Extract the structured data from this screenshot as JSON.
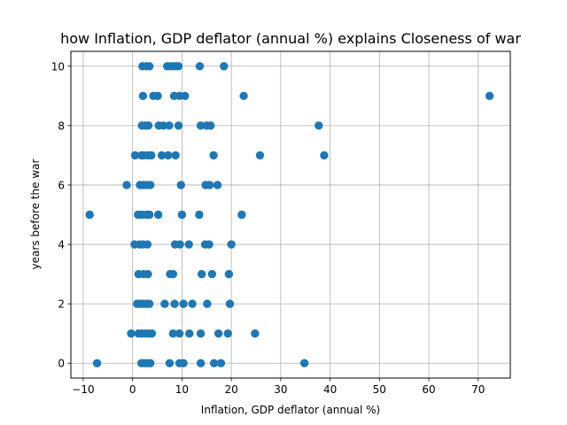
{
  "chart_data": {
    "type": "scatter",
    "title": "how Inflation, GDP deflator (annual %) explains Closeness of war",
    "xlabel": "Inflation, GDP deflator (annual %)",
    "ylabel": "years before the war",
    "xlim": [
      -12.5,
      76.5
    ],
    "ylim": [
      -0.5,
      10.5
    ],
    "xticks": [
      -10,
      0,
      10,
      20,
      30,
      40,
      50,
      60,
      70
    ],
    "yticks": [
      0,
      2,
      4,
      6,
      8,
      10
    ],
    "grid": true,
    "marker_color": "#1f77b4",
    "points": [
      {
        "x": 2.0,
        "y": 10
      },
      {
        "x": 2.8,
        "y": 10
      },
      {
        "x": 3.4,
        "y": 10
      },
      {
        "x": 7.0,
        "y": 10
      },
      {
        "x": 7.6,
        "y": 10
      },
      {
        "x": 8.2,
        "y": 10
      },
      {
        "x": 8.8,
        "y": 10
      },
      {
        "x": 9.3,
        "y": 10
      },
      {
        "x": 13.6,
        "y": 10
      },
      {
        "x": 18.5,
        "y": 10
      },
      {
        "x": 2.1,
        "y": 9
      },
      {
        "x": 4.2,
        "y": 9
      },
      {
        "x": 5.1,
        "y": 9
      },
      {
        "x": 8.4,
        "y": 9
      },
      {
        "x": 9.5,
        "y": 9
      },
      {
        "x": 10.6,
        "y": 9
      },
      {
        "x": 22.5,
        "y": 9
      },
      {
        "x": 72.3,
        "y": 9
      },
      {
        "x": 1.9,
        "y": 8
      },
      {
        "x": 2.6,
        "y": 8
      },
      {
        "x": 3.2,
        "y": 8
      },
      {
        "x": 5.3,
        "y": 8
      },
      {
        "x": 6.2,
        "y": 8
      },
      {
        "x": 7.4,
        "y": 8
      },
      {
        "x": 9.3,
        "y": 8
      },
      {
        "x": 13.8,
        "y": 8
      },
      {
        "x": 15.0,
        "y": 8
      },
      {
        "x": 15.8,
        "y": 8
      },
      {
        "x": 37.7,
        "y": 8
      },
      {
        "x": 0.5,
        "y": 7
      },
      {
        "x": 1.8,
        "y": 7
      },
      {
        "x": 2.2,
        "y": 7
      },
      {
        "x": 3.1,
        "y": 7
      },
      {
        "x": 3.8,
        "y": 7
      },
      {
        "x": 5.9,
        "y": 7
      },
      {
        "x": 7.2,
        "y": 7
      },
      {
        "x": 8.7,
        "y": 7
      },
      {
        "x": 16.4,
        "y": 7
      },
      {
        "x": 25.8,
        "y": 7
      },
      {
        "x": 38.8,
        "y": 7
      },
      {
        "x": -1.2,
        "y": 6
      },
      {
        "x": 1.5,
        "y": 6
      },
      {
        "x": 2.2,
        "y": 6
      },
      {
        "x": 2.9,
        "y": 6
      },
      {
        "x": 3.6,
        "y": 6
      },
      {
        "x": 9.8,
        "y": 6
      },
      {
        "x": 14.8,
        "y": 6
      },
      {
        "x": 15.6,
        "y": 6
      },
      {
        "x": 17.2,
        "y": 6
      },
      {
        "x": -8.7,
        "y": 5
      },
      {
        "x": 1.1,
        "y": 5
      },
      {
        "x": 1.9,
        "y": 5
      },
      {
        "x": 2.8,
        "y": 5
      },
      {
        "x": 3.4,
        "y": 5
      },
      {
        "x": 5.2,
        "y": 5
      },
      {
        "x": 10.0,
        "y": 5
      },
      {
        "x": 13.5,
        "y": 5
      },
      {
        "x": 22.1,
        "y": 5
      },
      {
        "x": 0.4,
        "y": 4
      },
      {
        "x": 1.4,
        "y": 4
      },
      {
        "x": 2.1,
        "y": 4
      },
      {
        "x": 3.0,
        "y": 4
      },
      {
        "x": 8.6,
        "y": 4
      },
      {
        "x": 9.6,
        "y": 4
      },
      {
        "x": 11.4,
        "y": 4
      },
      {
        "x": 14.7,
        "y": 4
      },
      {
        "x": 15.5,
        "y": 4
      },
      {
        "x": 20.0,
        "y": 4
      },
      {
        "x": 1.2,
        "y": 3
      },
      {
        "x": 2.2,
        "y": 3
      },
      {
        "x": 3.1,
        "y": 3
      },
      {
        "x": 7.6,
        "y": 3
      },
      {
        "x": 8.2,
        "y": 3
      },
      {
        "x": 14.0,
        "y": 3
      },
      {
        "x": 16.1,
        "y": 3
      },
      {
        "x": 19.5,
        "y": 3
      },
      {
        "x": 0.9,
        "y": 2
      },
      {
        "x": 1.6,
        "y": 2
      },
      {
        "x": 2.2,
        "y": 2
      },
      {
        "x": 2.8,
        "y": 2
      },
      {
        "x": 3.4,
        "y": 2
      },
      {
        "x": 6.5,
        "y": 2
      },
      {
        "x": 8.5,
        "y": 2
      },
      {
        "x": 10.3,
        "y": 2
      },
      {
        "x": 12.1,
        "y": 2
      },
      {
        "x": 15.1,
        "y": 2
      },
      {
        "x": 19.7,
        "y": 2
      },
      {
        "x": -0.3,
        "y": 1
      },
      {
        "x": 1.2,
        "y": 1
      },
      {
        "x": 1.9,
        "y": 1
      },
      {
        "x": 2.7,
        "y": 1
      },
      {
        "x": 3.3,
        "y": 1
      },
      {
        "x": 3.9,
        "y": 1
      },
      {
        "x": 8.2,
        "y": 1
      },
      {
        "x": 9.5,
        "y": 1
      },
      {
        "x": 11.5,
        "y": 1
      },
      {
        "x": 13.8,
        "y": 1
      },
      {
        "x": 17.4,
        "y": 1
      },
      {
        "x": 19.3,
        "y": 1
      },
      {
        "x": 24.8,
        "y": 1
      },
      {
        "x": -7.2,
        "y": 0
      },
      {
        "x": 1.8,
        "y": 0
      },
      {
        "x": 2.4,
        "y": 0
      },
      {
        "x": 3.0,
        "y": 0
      },
      {
        "x": 3.6,
        "y": 0
      },
      {
        "x": 7.5,
        "y": 0
      },
      {
        "x": 9.5,
        "y": 0
      },
      {
        "x": 10.3,
        "y": 0
      },
      {
        "x": 13.8,
        "y": 0
      },
      {
        "x": 16.5,
        "y": 0
      },
      {
        "x": 17.9,
        "y": 0
      },
      {
        "x": 34.8,
        "y": 0
      }
    ]
  }
}
